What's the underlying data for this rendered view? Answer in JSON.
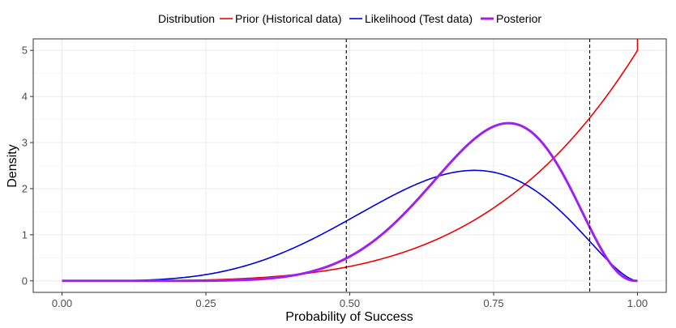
{
  "chart_data": {
    "type": "line",
    "xlabel": "Probability of Success",
    "ylabel": "Density",
    "xlim": [
      -0.05,
      1.05
    ],
    "ylim": [
      -0.25,
      5.25
    ],
    "x_ticks": [
      "0.00",
      "0.25",
      "0.50",
      "0.75",
      "1.00"
    ],
    "x_tick_values": [
      0,
      0.25,
      0.5,
      0.75,
      1.0
    ],
    "y_ticks": [
      "0",
      "1",
      "2",
      "3",
      "4",
      "5"
    ],
    "y_tick_values": [
      0,
      1,
      2,
      3,
      4,
      5
    ],
    "grid": true,
    "legend_position": "top",
    "legend_title": "Distribution",
    "series": [
      {
        "name": "Prior (Historical data)",
        "color": "#ee0000",
        "dist": "beta",
        "alpha": 5,
        "beta": 1
      },
      {
        "name": "Likelihood (Test data)",
        "color": "#0000dd",
        "dist": "beta",
        "alpha": 5.3,
        "beta": 2.7
      },
      {
        "name": "Posterior",
        "color": "#a020f0",
        "dist": "beta",
        "alpha": 10,
        "beta": 3.6
      }
    ],
    "vlines": [
      0.494,
      0.917
    ],
    "vline_color": "#000000"
  }
}
